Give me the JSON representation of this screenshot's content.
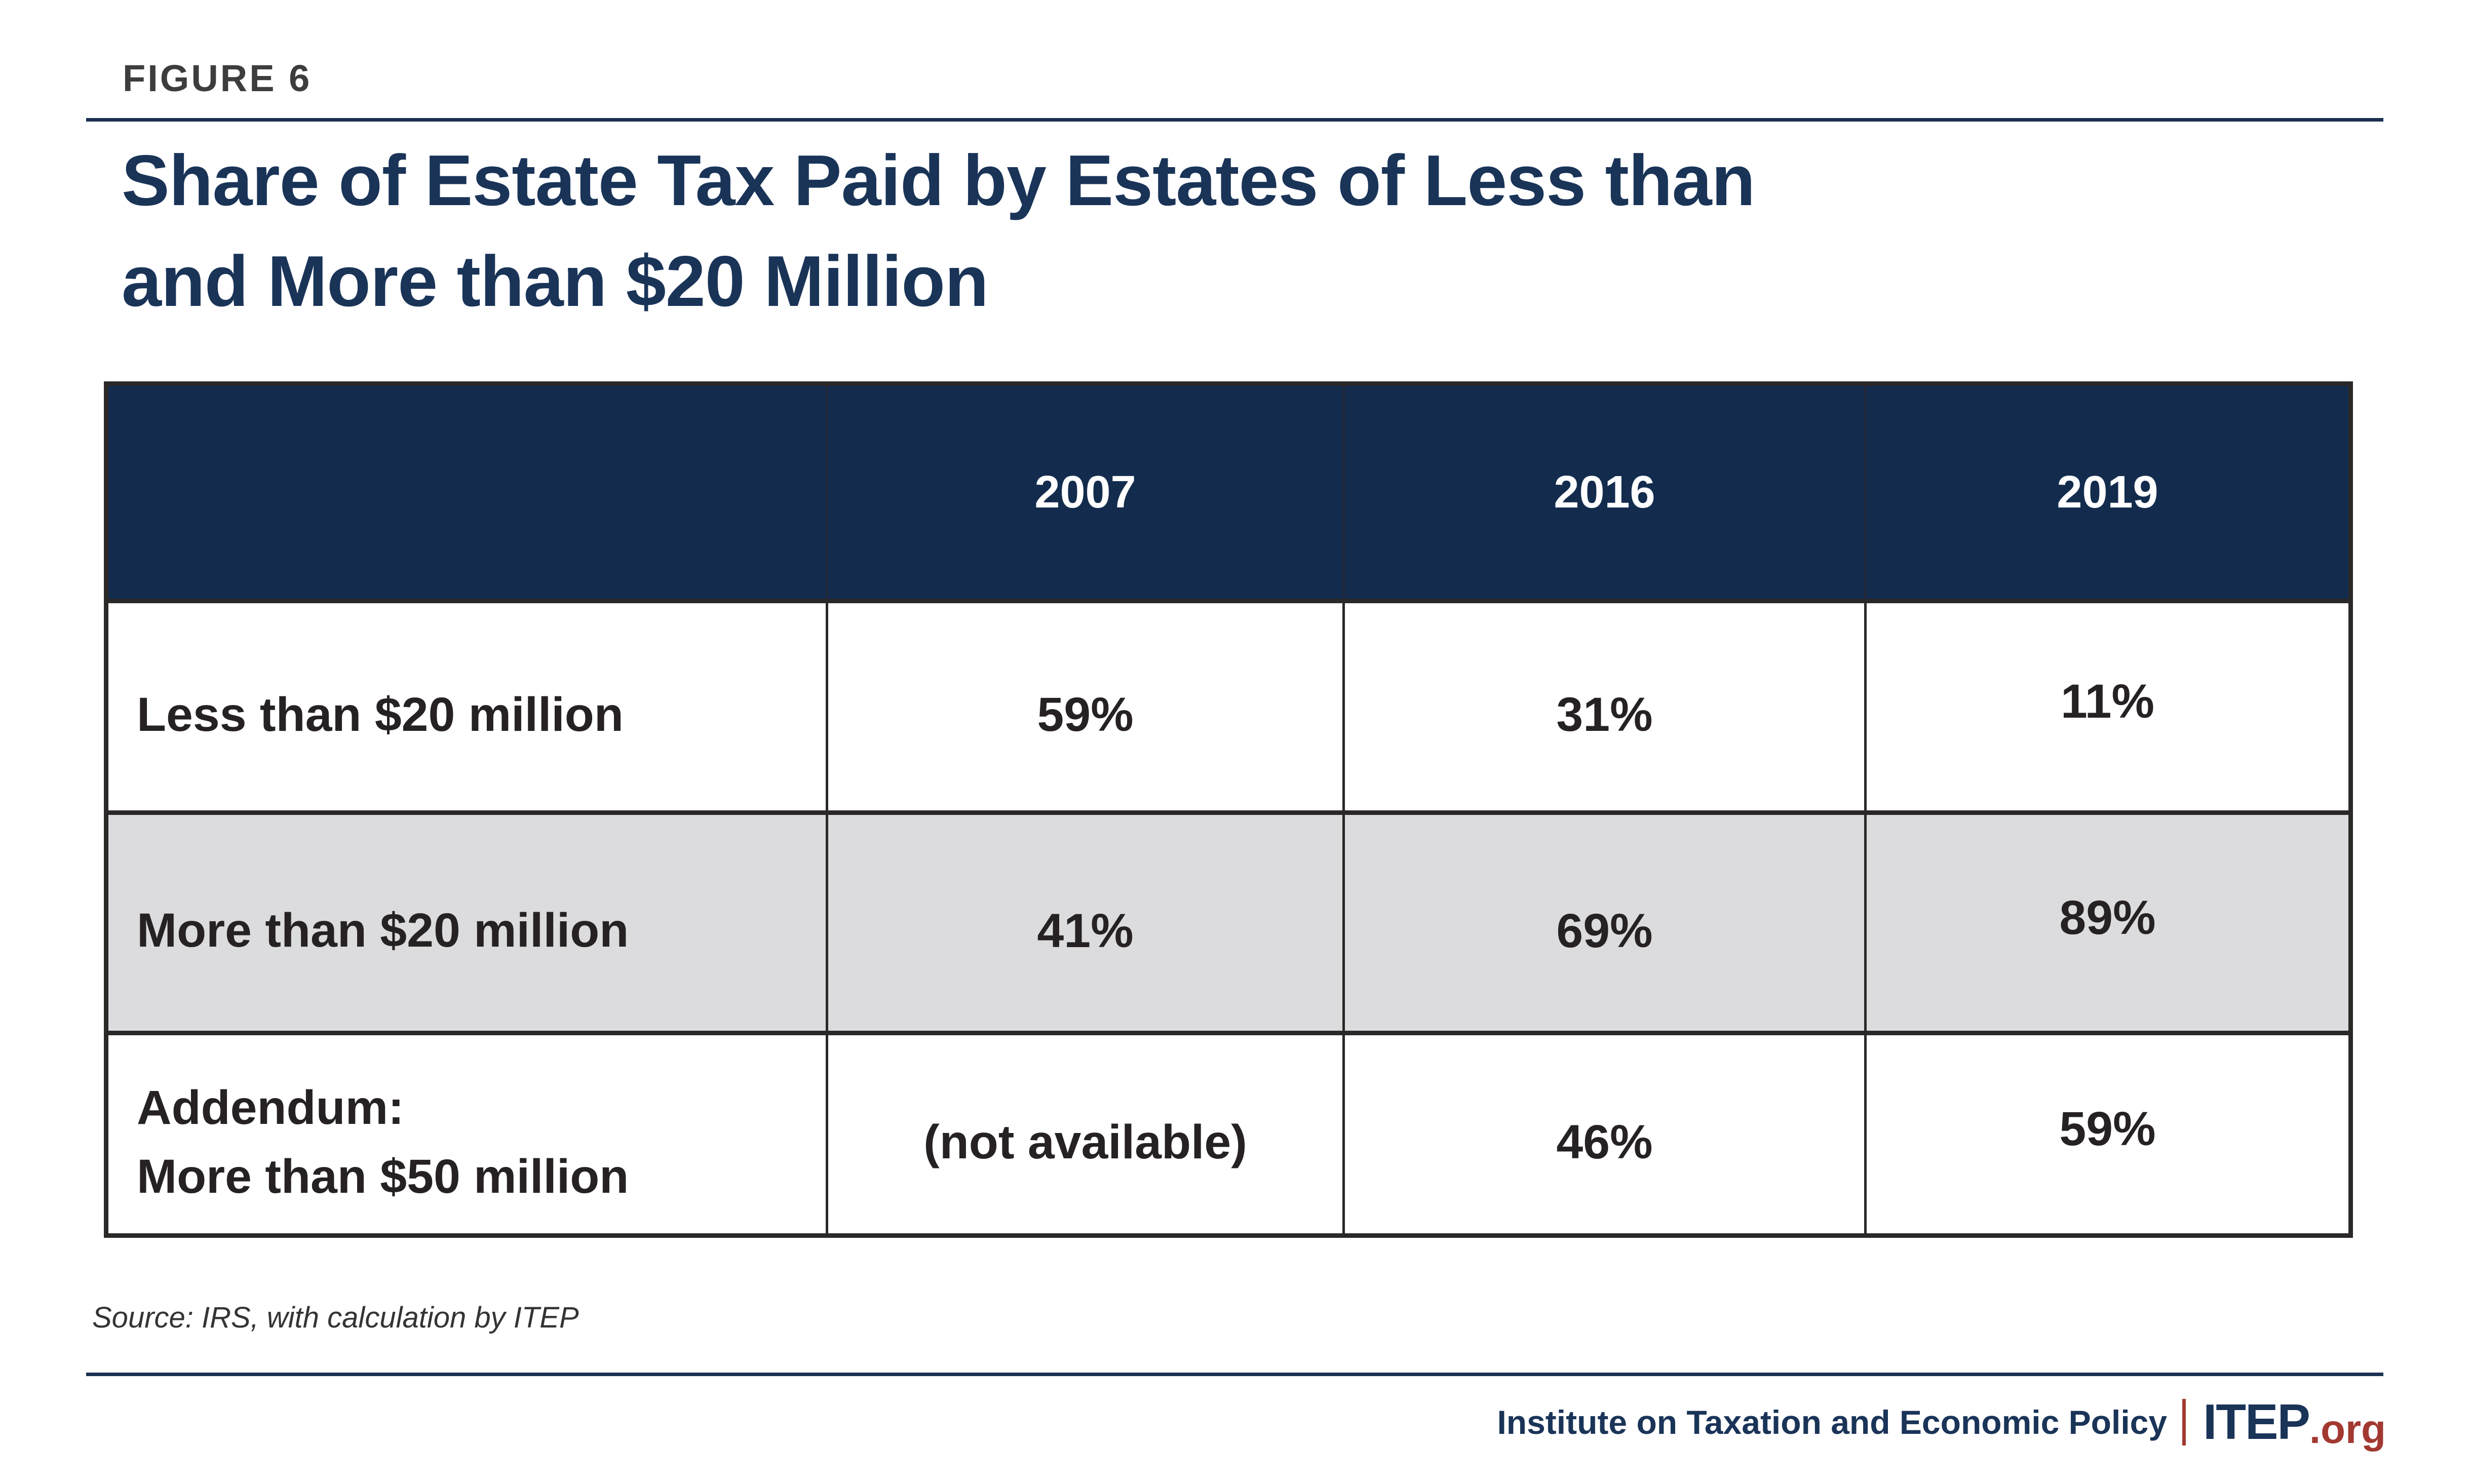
{
  "figure_label": "FIGURE 6",
  "title": {
    "line1": "Share of Estate Tax Paid by Estates of Less than",
    "line2": "and More than $20 Million"
  },
  "table": {
    "header": [
      "2007",
      "2016",
      "2019"
    ],
    "rows": [
      {
        "label_line1": "Less than $20 million",
        "label_line2": "",
        "values": [
          "59%",
          "31%",
          "11%"
        ]
      },
      {
        "label_line1": "More than $20 million",
        "label_line2": "",
        "values": [
          "41%",
          "69%",
          "89%"
        ]
      },
      {
        "label_line1": "Addendum:",
        "label_line2": "More than $50 million",
        "values": [
          "(not available)",
          "46%",
          "59%"
        ]
      }
    ]
  },
  "source_note": "Source: IRS, with calculation by ITEP",
  "footer": {
    "organization": "Institute on Taxation and Economic Policy",
    "brand": "ITEP",
    "brand_suffix": ".org"
  },
  "colors": {
    "navy_header_bg": "#132c4e",
    "navy_text": "#1a3458",
    "rule_navy": "#1c3150",
    "brand_red": "#a23931",
    "row_gray": "#dcdcde",
    "border_dark": "#2b2828",
    "body_text": "#262223",
    "figure_label_gray": "#3e3d3d"
  },
  "chart_data": {
    "type": "table",
    "title": "Share of Estate Tax Paid by Estates of Less than and More than $20 Million",
    "categories": [
      "2007",
      "2016",
      "2019"
    ],
    "series": [
      {
        "name": "Less than $20 million",
        "values": [
          59,
          31,
          11
        ]
      },
      {
        "name": "More than $20 million",
        "values": [
          41,
          69,
          89
        ]
      },
      {
        "name": "Addendum: More than $50 million",
        "values": [
          null,
          46,
          59
        ],
        "note_2007": "(not available)"
      }
    ],
    "units": "percent",
    "source": "Source: IRS, with calculation by ITEP"
  }
}
